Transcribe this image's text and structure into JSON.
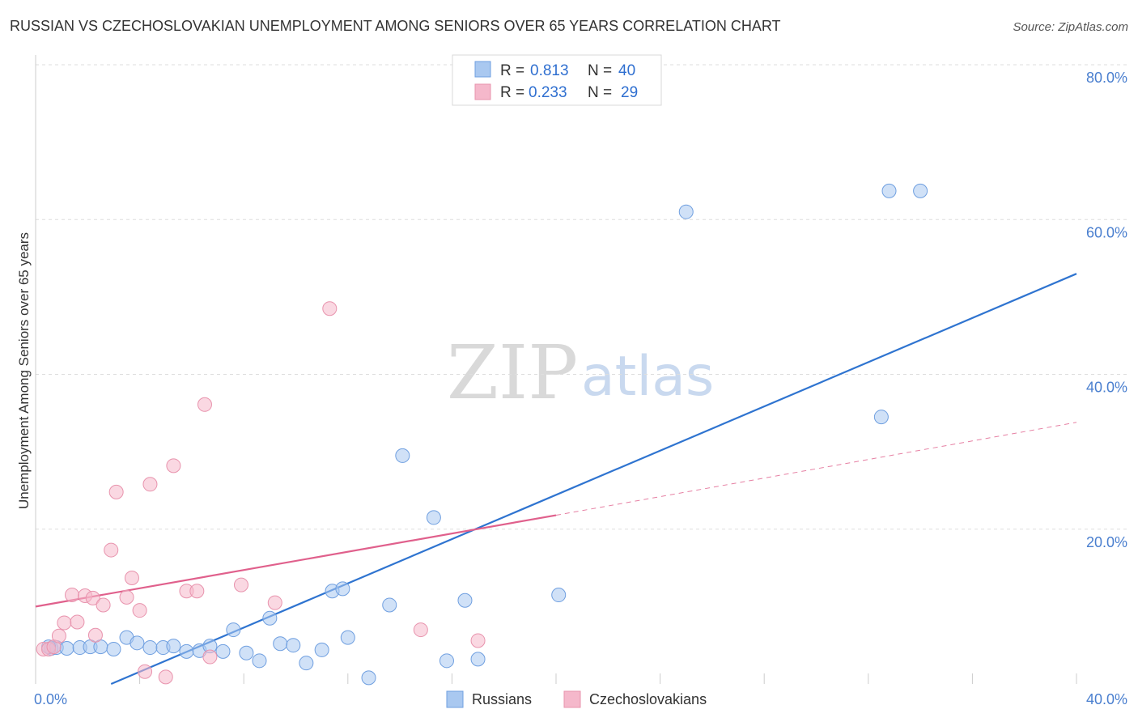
{
  "title": "RUSSIAN VS CZECHOSLOVAKIAN UNEMPLOYMENT AMONG SENIORS OVER 65 YEARS CORRELATION CHART",
  "source": "Source: ZipAtlas.com",
  "watermark": {
    "zip": "ZIP",
    "atlas": "atlas"
  },
  "legend": {
    "r_label": "R =",
    "n_label": "N =",
    "rows": [
      {
        "r": "0.813",
        "n": "40",
        "color": "#a9c8f0"
      },
      {
        "r": "0.233",
        "n": "29",
        "color": "#f5b8cb"
      }
    ]
  },
  "bottom_legend": [
    "Russians",
    "Czechoslovakians"
  ],
  "chart_data": {
    "type": "scatter",
    "title": "RUSSIAN VS CZECHOSLOVAKIAN UNEMPLOYMENT AMONG SENIORS OVER 65 YEARS CORRELATION CHART",
    "xlabel": "",
    "ylabel": "Unemployment Among Seniors over 65 years",
    "xlim": [
      0,
      40
    ],
    "ylim": [
      0,
      80
    ],
    "x_ticks": [
      "0.0%",
      "40.0%"
    ],
    "y_ticks": [
      {
        "value": 20,
        "label": "20.0%"
      },
      {
        "value": 40,
        "label": "40.0%"
      },
      {
        "value": 60,
        "label": "60.0%"
      },
      {
        "value": 80,
        "label": "80.0%"
      }
    ],
    "grid": true,
    "series": [
      {
        "name": "Russians",
        "color": "#a9c8f0",
        "stroke": "#6f9fe0",
        "trend_color": "#2f74d0",
        "trend": {
          "x1": 2.9,
          "y1": 0.0,
          "x2": 40.0,
          "y2": 53.0
        },
        "points": [
          [
            0.6,
            4.6
          ],
          [
            0.8,
            4.7
          ],
          [
            1.2,
            4.6
          ],
          [
            1.7,
            4.7
          ],
          [
            2.1,
            4.8
          ],
          [
            2.5,
            4.8
          ],
          [
            3.0,
            4.5
          ],
          [
            3.5,
            6.0
          ],
          [
            3.9,
            5.3
          ],
          [
            4.4,
            4.7
          ],
          [
            4.9,
            4.7
          ],
          [
            5.3,
            4.9
          ],
          [
            5.8,
            4.2
          ],
          [
            6.3,
            4.3
          ],
          [
            6.7,
            4.9
          ],
          [
            7.2,
            4.2
          ],
          [
            7.6,
            7.0
          ],
          [
            8.1,
            4.0
          ],
          [
            8.6,
            3.0
          ],
          [
            9.0,
            8.5
          ],
          [
            9.4,
            5.2
          ],
          [
            9.9,
            5.0
          ],
          [
            10.4,
            2.7
          ],
          [
            11.0,
            4.4
          ],
          [
            11.4,
            12.0
          ],
          [
            11.8,
            12.3
          ],
          [
            12.0,
            6.0
          ],
          [
            12.8,
            0.8
          ],
          [
            13.6,
            10.2
          ],
          [
            14.1,
            29.5
          ],
          [
            15.3,
            21.5
          ],
          [
            15.8,
            3.0
          ],
          [
            16.5,
            10.8
          ],
          [
            17.0,
            3.2
          ],
          [
            20.1,
            11.5
          ],
          [
            25.0,
            61.0
          ],
          [
            32.5,
            34.5
          ],
          [
            32.8,
            63.7
          ],
          [
            34.0,
            63.7
          ],
          [
            0.5,
            4.8
          ]
        ]
      },
      {
        "name": "Czechoslovakians",
        "color": "#f5b8cb",
        "stroke": "#e893ad",
        "trend_color": "#e0608c",
        "trend": {
          "x1": 0.0,
          "y1": 10.0,
          "x2": 20.0,
          "y2": 21.8
        },
        "trend_ext": {
          "x1": 20.0,
          "y1": 21.8,
          "x2": 40.0,
          "y2": 33.8
        },
        "points": [
          [
            0.3,
            4.5
          ],
          [
            0.5,
            4.5
          ],
          [
            0.7,
            4.8
          ],
          [
            0.9,
            6.2
          ],
          [
            1.1,
            7.9
          ],
          [
            1.4,
            11.5
          ],
          [
            1.6,
            8.0
          ],
          [
            1.9,
            11.4
          ],
          [
            2.2,
            11.1
          ],
          [
            2.3,
            6.3
          ],
          [
            2.6,
            10.2
          ],
          [
            2.9,
            17.3
          ],
          [
            3.1,
            24.8
          ],
          [
            3.5,
            11.2
          ],
          [
            3.7,
            13.7
          ],
          [
            4.0,
            9.5
          ],
          [
            4.2,
            1.6
          ],
          [
            4.4,
            25.8
          ],
          [
            5.0,
            0.9
          ],
          [
            5.3,
            28.2
          ],
          [
            5.8,
            12.0
          ],
          [
            6.2,
            12.0
          ],
          [
            6.5,
            36.1
          ],
          [
            6.7,
            3.5
          ],
          [
            7.9,
            12.8
          ],
          [
            9.2,
            10.5
          ],
          [
            11.3,
            48.5
          ],
          [
            14.8,
            7.0
          ],
          [
            17.0,
            5.6
          ]
        ]
      }
    ]
  }
}
